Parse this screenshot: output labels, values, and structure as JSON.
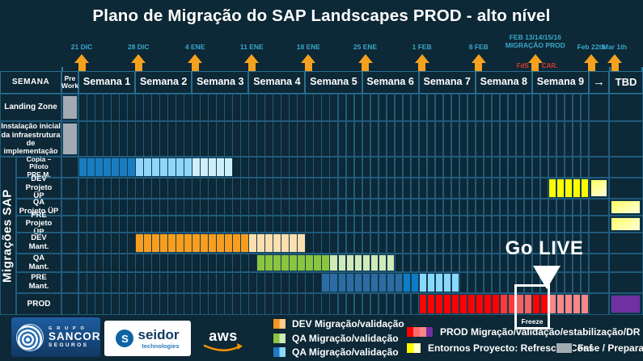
{
  "title": "Plano de Migração do SAP Landscapes PROD - alto nível",
  "header": {
    "semana_label": "SEMANA",
    "pre_work": "Pre\nWork",
    "weeks": [
      "Semana 1",
      "Semana 2",
      "Semana 3",
      "Semana 4",
      "Semana 5",
      "Semana 6",
      "Semana 7",
      "Semana 8",
      "Semana 9"
    ],
    "arrow": "→",
    "tbd": "TBD"
  },
  "side_label": "Migrações SAP",
  "rows": [
    {
      "lines": [
        "Landing Zone"
      ]
    },
    {
      "lines": [
        "Instalação inicial",
        "da infraestrutura",
        "de implementação"
      ]
    },
    {
      "lines": [
        "Copia – Piloto",
        "PRE M."
      ]
    },
    {
      "lines": [
        "DEV Projeto",
        "ÜP"
      ]
    },
    {
      "lines": [
        "QA",
        "Projeto ÜP"
      ]
    },
    {
      "lines": [
        "PRE Projeto",
        "ÜP"
      ]
    },
    {
      "lines": [
        "DEV",
        "Mant."
      ]
    },
    {
      "lines": [
        "QA",
        "Mant."
      ]
    },
    {
      "lines": [
        "PRE",
        "Mant."
      ]
    },
    {
      "lines": [
        "PROD"
      ]
    }
  ],
  "milestones": [
    {
      "label": "21 DIC",
      "week": 1
    },
    {
      "label": "28 DIC",
      "week": 2
    },
    {
      "label": "4 ENE",
      "week": 3
    },
    {
      "label": "11 ENE",
      "week": 4
    },
    {
      "label": "18 ENE",
      "week": 5
    },
    {
      "label": "25 ENE",
      "week": 6
    },
    {
      "label": "1 FEB",
      "week": 7
    },
    {
      "label": "8 FEB",
      "week": 8
    },
    {
      "label": "FEB 13/14/15/16\nMIGRAÇÃO PROD",
      "week": 9,
      "left_note": "FdS",
      "right_note": "CAR."
    },
    {
      "label": "Feb 22th",
      "pos": "arrow-col"
    },
    {
      "label": "Mar 1th",
      "pos": "tbd-col"
    }
  ],
  "annotations": {
    "go_live": "Go LIVE",
    "freeze": "Freeze"
  },
  "chart_data": {
    "type": "bar",
    "subtype": "gantt-timeline",
    "title": "Plano de Migração do SAP Landscapes PROD - alto nível",
    "x_axis": {
      "unit": "days",
      "days_per_week": 7,
      "weeks": 9,
      "extra_columns": [
        "Pre Work",
        "→",
        "TBD"
      ]
    },
    "tasks": [
      {
        "row": "Landing Zone",
        "segments": [
          {
            "col": "prework",
            "color": "#a3abb2",
            "meaning": "Fase / Preparação"
          }
        ]
      },
      {
        "row": "Instalação inicial da infraestrutura de implementação",
        "segments": [
          {
            "col": "prework",
            "color": "#a3abb2",
            "meaning": "Fase / Preparação"
          }
        ]
      },
      {
        "row": "Copia – Piloto PRE M.",
        "segments": [
          {
            "day": 0,
            "n": 7,
            "color": "#1a7cc1"
          },
          {
            "day": 7,
            "n": 7,
            "color": "#8fd6f8"
          },
          {
            "day": 14,
            "n": 5,
            "color": "#cdeefc"
          }
        ]
      },
      {
        "row": "DEV Projeto ÜP",
        "segments": [
          {
            "day": 58,
            "n": 5,
            "color": "#fcfc00"
          },
          {
            "col": "arrow",
            "gradient": [
              "#ffff66",
              "#ffffd9"
            ],
            "meaning": "Entornos Proyecto: Refresco / Conf"
          }
        ]
      },
      {
        "row": "QA Projeto ÜP",
        "segments": [
          {
            "col": "tbd",
            "gradient": [
              "#ffff66",
              "#ffffd9"
            ],
            "meaning": "Entornos Proyecto: Refresco / Conf"
          }
        ]
      },
      {
        "row": "PRE Projeto ÜP",
        "segments": [
          {
            "col": "tbd",
            "gradient": [
              "#ffff66",
              "#ffffd9"
            ],
            "meaning": "Entornos Proyecto: Refresco / Conf"
          }
        ]
      },
      {
        "row": "DEV Mant.",
        "segments": [
          {
            "day": 7,
            "n": 14,
            "color": "#f99d1d"
          },
          {
            "day": 21,
            "n": 7,
            "color": "#fbdfaf"
          }
        ]
      },
      {
        "row": "QA Mant.",
        "segments": [
          {
            "day": 22,
            "n": 9,
            "color": "#8bc53f"
          },
          {
            "day": 31,
            "n": 8,
            "color": "#d0e9b6"
          }
        ]
      },
      {
        "row": "PRE Mant.",
        "segments": [
          {
            "day": 30,
            "n": 10,
            "color": "#2d6ca3"
          },
          {
            "day": 40,
            "n": 2,
            "color": "#0e7cc6"
          },
          {
            "day": 42,
            "n": 5,
            "color": "#88d8fb"
          }
        ]
      },
      {
        "row": "PROD",
        "segments": [
          {
            "day": 42,
            "n": 10,
            "color": "#fe0100"
          },
          {
            "day": 52,
            "n": 2,
            "color": "#fb3b3b"
          },
          {
            "day": 54,
            "n": 2,
            "color": "#f56262",
            "note": "freeze"
          },
          {
            "day": 56,
            "n": 2,
            "color": "#fe0100",
            "note": "freeze"
          },
          {
            "day": 58,
            "n": 5,
            "color": "#fa8787"
          },
          {
            "col": "tbd",
            "color": "#7030a0"
          }
        ]
      }
    ]
  },
  "legend": {
    "left": [
      {
        "label": "DEV Migração/validação",
        "colors": [
          "#f7941d",
          "#fdc98d"
        ]
      },
      {
        "label": "QA Migração/validação",
        "colors": [
          "#8bc53f",
          "#d0e9b6"
        ]
      },
      {
        "label": "QA Migração/validação",
        "colors": [
          "#1a7cc1",
          "#8fd6f8"
        ]
      }
    ],
    "mid": [
      {
        "label": "PROD Migração/validação/estabilização/DR",
        "colors": [
          "#fe0100",
          "#fb6b6b",
          "#fa8787",
          "#7030a0"
        ]
      },
      {
        "label": "Entornos Proyecto: Refresco / Conf",
        "colors": [
          "#fcfc00",
          "#ffffc8"
        ]
      }
    ],
    "right": [
      {
        "label": "Fase / Preparação",
        "colors": [
          "#a3abb2"
        ]
      }
    ]
  },
  "logos": {
    "sancor": {
      "grupo": "G R U P O",
      "name": "SANCOR",
      "sub": "SEGUROS"
    },
    "seidor": {
      "initial": "S",
      "name": "seidor",
      "sub": "technologies"
    },
    "aws": {
      "name": "aws"
    }
  },
  "colors": {
    "background": "#0d2836",
    "grid_line": "#1f5b7d",
    "milestone_text": "#3aa7c9",
    "milestone_arrow": "#f6a11e",
    "alert_red": "#e03a2c",
    "prework_gray": "#a3abb2",
    "prod_red": "#fe0100",
    "golive_white": "#ffffff"
  }
}
